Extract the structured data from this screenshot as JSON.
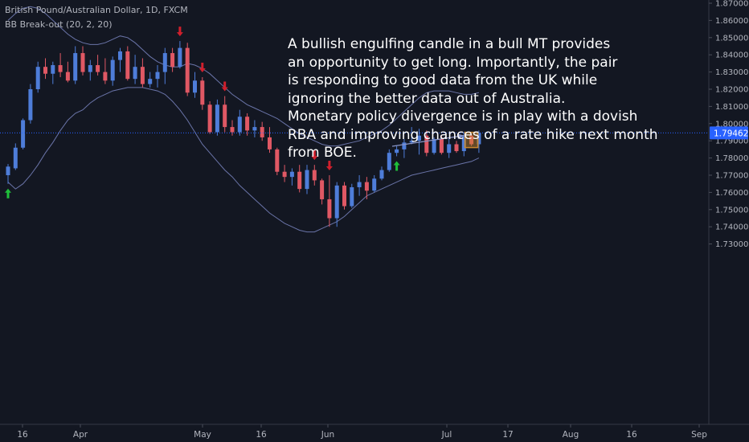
{
  "header": {
    "symbol_line": "British Pound/Australian Dollar, 1D, FXCM",
    "indicator_line": "BB Break-out (20, 2, 20)"
  },
  "annotation": {
    "lines": [
      "A bullish engulfing candle in a bull MT provides",
      "an opportunity to get long. Importantly, the pair",
      "is responding to good data from the UK while",
      "ignoring the better data out of Australia.",
      "Monetary policy divergence is in play with a dovish",
      "RBA and improving chances of a rate hike next month",
      "from BOE."
    ]
  },
  "colors": {
    "background": "#131722",
    "up_candle": "#4e7dd9",
    "down_candle": "#e05864",
    "band_line": "#6a74a8",
    "signal_down": "#d01f2c",
    "signal_up": "#1fbf3a",
    "highlight": "#c8872e",
    "price_tag": "#2962ff",
    "axis_text": "#b2b5be",
    "annotation_text": "#ffffff"
  },
  "chart_data": {
    "type": "candlestick",
    "symbol": "British Pound/Australian Dollar",
    "timeframe": "1D",
    "ylim": [
      1.7245,
      1.8705
    ],
    "y_ticks": [
      "1.87000",
      "1.86000",
      "1.85000",
      "1.84000",
      "1.83000",
      "1.82000",
      "1.81000",
      "1.80000",
      "1.79000",
      "1.78000",
      "1.77000",
      "1.76000",
      "1.75000",
      "1.74000",
      "1.73000"
    ],
    "x_ticks": [
      "16",
      "Apr",
      "16",
      "May",
      "16",
      "Jun",
      "16",
      "Jul",
      "17",
      "Aug",
      "16",
      "Sep"
    ],
    "last_price": "1.79462",
    "candles": [
      {
        "o": 1.77,
        "h": 1.7765,
        "l": 1.765,
        "c": 1.775
      },
      {
        "o": 1.774,
        "h": 1.7885,
        "l": 1.773,
        "c": 1.786
      },
      {
        "o": 1.786,
        "h": 1.803,
        "l": 1.785,
        "c": 1.802
      },
      {
        "o": 1.802,
        "h": 1.823,
        "l": 1.8,
        "c": 1.82
      },
      {
        "o": 1.82,
        "h": 1.836,
        "l": 1.818,
        "c": 1.833
      },
      {
        "o": 1.833,
        "h": 1.838,
        "l": 1.826,
        "c": 1.829
      },
      {
        "o": 1.829,
        "h": 1.836,
        "l": 1.823,
        "c": 1.834
      },
      {
        "o": 1.834,
        "h": 1.841,
        "l": 1.827,
        "c": 1.83
      },
      {
        "o": 1.83,
        "h": 1.836,
        "l": 1.824,
        "c": 1.825
      },
      {
        "o": 1.825,
        "h": 1.845,
        "l": 1.823,
        "c": 1.841
      },
      {
        "o": 1.841,
        "h": 1.845,
        "l": 1.828,
        "c": 1.83
      },
      {
        "o": 1.83,
        "h": 1.837,
        "l": 1.825,
        "c": 1.834
      },
      {
        "o": 1.834,
        "h": 1.84,
        "l": 1.828,
        "c": 1.83
      },
      {
        "o": 1.83,
        "h": 1.838,
        "l": 1.823,
        "c": 1.825
      },
      {
        "o": 1.825,
        "h": 1.839,
        "l": 1.822,
        "c": 1.837
      },
      {
        "o": 1.837,
        "h": 1.844,
        "l": 1.83,
        "c": 1.842
      },
      {
        "o": 1.842,
        "h": 1.845,
        "l": 1.825,
        "c": 1.826
      },
      {
        "o": 1.826,
        "h": 1.84,
        "l": 1.823,
        "c": 1.833
      },
      {
        "o": 1.833,
        "h": 1.838,
        "l": 1.821,
        "c": 1.823
      },
      {
        "o": 1.823,
        "h": 1.83,
        "l": 1.821,
        "c": 1.826
      },
      {
        "o": 1.826,
        "h": 1.834,
        "l": 1.821,
        "c": 1.83
      },
      {
        "o": 1.83,
        "h": 1.844,
        "l": 1.823,
        "c": 1.841
      },
      {
        "o": 1.841,
        "h": 1.844,
        "l": 1.83,
        "c": 1.833
      },
      {
        "o": 1.833,
        "h": 1.848,
        "l": 1.832,
        "c": 1.844
      },
      {
        "o": 1.844,
        "h": 1.847,
        "l": 1.816,
        "c": 1.818
      },
      {
        "o": 1.818,
        "h": 1.83,
        "l": 1.815,
        "c": 1.825
      },
      {
        "o": 1.825,
        "h": 1.827,
        "l": 1.808,
        "c": 1.811
      },
      {
        "o": 1.811,
        "h": 1.813,
        "l": 1.794,
        "c": 1.795
      },
      {
        "o": 1.795,
        "h": 1.814,
        "l": 1.793,
        "c": 1.811
      },
      {
        "o": 1.811,
        "h": 1.816,
        "l": 1.795,
        "c": 1.798
      },
      {
        "o": 1.798,
        "h": 1.802,
        "l": 1.793,
        "c": 1.795
      },
      {
        "o": 1.795,
        "h": 1.808,
        "l": 1.793,
        "c": 1.804
      },
      {
        "o": 1.804,
        "h": 1.806,
        "l": 1.793,
        "c": 1.796
      },
      {
        "o": 1.796,
        "h": 1.802,
        "l": 1.792,
        "c": 1.798
      },
      {
        "o": 1.798,
        "h": 1.801,
        "l": 1.79,
        "c": 1.792
      },
      {
        "o": 1.792,
        "h": 1.798,
        "l": 1.783,
        "c": 1.785
      },
      {
        "o": 1.785,
        "h": 1.786,
        "l": 1.77,
        "c": 1.772
      },
      {
        "o": 1.772,
        "h": 1.776,
        "l": 1.766,
        "c": 1.769
      },
      {
        "o": 1.769,
        "h": 1.774,
        "l": 1.764,
        "c": 1.772
      },
      {
        "o": 1.772,
        "h": 1.776,
        "l": 1.76,
        "c": 1.762
      },
      {
        "o": 1.762,
        "h": 1.776,
        "l": 1.759,
        "c": 1.773
      },
      {
        "o": 1.773,
        "h": 1.776,
        "l": 1.764,
        "c": 1.767
      },
      {
        "o": 1.767,
        "h": 1.768,
        "l": 1.753,
        "c": 1.756
      },
      {
        "o": 1.756,
        "h": 1.77,
        "l": 1.74,
        "c": 1.745
      },
      {
        "o": 1.745,
        "h": 1.766,
        "l": 1.74,
        "c": 1.764
      },
      {
        "o": 1.764,
        "h": 1.766,
        "l": 1.75,
        "c": 1.752
      },
      {
        "o": 1.752,
        "h": 1.765,
        "l": 1.751,
        "c": 1.763
      },
      {
        "o": 1.763,
        "h": 1.77,
        "l": 1.758,
        "c": 1.766
      },
      {
        "o": 1.766,
        "h": 1.769,
        "l": 1.756,
        "c": 1.761
      },
      {
        "o": 1.761,
        "h": 1.77,
        "l": 1.76,
        "c": 1.768
      },
      {
        "o": 1.768,
        "h": 1.775,
        "l": 1.767,
        "c": 1.773
      },
      {
        "o": 1.773,
        "h": 1.785,
        "l": 1.772,
        "c": 1.783
      },
      {
        "o": 1.783,
        "h": 1.787,
        "l": 1.781,
        "c": 1.785
      },
      {
        "o": 1.785,
        "h": 1.791,
        "l": 1.78,
        "c": 1.789
      },
      {
        "o": 1.789,
        "h": 1.798,
        "l": 1.788,
        "c": 1.79
      },
      {
        "o": 1.79,
        "h": 1.797,
        "l": 1.782,
        "c": 1.793
      },
      {
        "o": 1.793,
        "h": 1.796,
        "l": 1.781,
        "c": 1.783
      },
      {
        "o": 1.783,
        "h": 1.792,
        "l": 1.782,
        "c": 1.791
      },
      {
        "o": 1.791,
        "h": 1.793,
        "l": 1.782,
        "c": 1.783
      },
      {
        "o": 1.783,
        "h": 1.791,
        "l": 1.78,
        "c": 1.788
      },
      {
        "o": 1.788,
        "h": 1.79,
        "l": 1.783,
        "c": 1.784
      },
      {
        "o": 1.784,
        "h": 1.795,
        "l": 1.781,
        "c": 1.793
      },
      {
        "o": 1.793,
        "h": 1.794,
        "l": 1.787,
        "c": 1.788
      },
      {
        "o": 1.788,
        "h": 1.796,
        "l": 1.783,
        "c": 1.7946
      }
    ],
    "bollinger_upper": [
      1.86,
      1.864,
      1.867,
      1.868,
      1.867,
      1.864,
      1.86,
      1.856,
      1.852,
      1.849,
      1.847,
      1.846,
      1.846,
      1.847,
      1.849,
      1.851,
      1.85,
      1.847,
      1.843,
      1.839,
      1.836,
      1.834,
      1.833,
      1.833,
      1.835,
      1.834,
      1.832,
      1.829,
      1.825,
      1.821,
      1.817,
      1.814,
      1.811,
      1.809,
      1.807,
      1.805,
      1.803,
      1.8,
      1.797,
      1.794,
      1.792,
      1.79,
      1.788,
      1.787,
      1.787,
      1.788,
      1.789,
      1.79,
      1.792,
      1.794,
      1.796,
      1.799,
      1.803,
      1.807,
      1.811,
      1.815,
      1.818,
      1.819,
      1.819,
      1.819,
      1.818,
      1.817,
      1.817,
      1.818
    ],
    "bollinger_lower": [
      1.766,
      1.762,
      1.765,
      1.77,
      1.776,
      1.783,
      1.789,
      1.796,
      1.802,
      1.806,
      1.808,
      1.812,
      1.815,
      1.817,
      1.819,
      1.82,
      1.821,
      1.821,
      1.821,
      1.82,
      1.819,
      1.817,
      1.813,
      1.808,
      1.802,
      1.795,
      1.788,
      1.783,
      1.778,
      1.773,
      1.769,
      1.764,
      1.76,
      1.756,
      1.752,
      1.748,
      1.745,
      1.742,
      1.74,
      1.738,
      1.737,
      1.737,
      1.739,
      1.741,
      1.743,
      1.746,
      1.75,
      1.754,
      1.758,
      1.76,
      1.762,
      1.764,
      1.766,
      1.768,
      1.77,
      1.771,
      1.772,
      1.773,
      1.774,
      1.775,
      1.776,
      1.777,
      1.778,
      1.78
    ],
    "secondary_lower": [
      1.77,
      1.77,
      1.77,
      1.77,
      1.77,
      1.77,
      1.77,
      1.77,
      1.77,
      1.77,
      1.77,
      1.77,
      1.77,
      1.77,
      1.77,
      1.77,
      1.77,
      1.77,
      1.77,
      1.77,
      1.77,
      1.77,
      1.77,
      1.77,
      1.77,
      1.77,
      1.77,
      1.77,
      1.77,
      1.77,
      1.77,
      1.77,
      1.77,
      1.77,
      1.77,
      1.77,
      1.77,
      1.77,
      1.77,
      1.77,
      1.77,
      1.77,
      1.77,
      1.77,
      1.77,
      1.77,
      1.77,
      1.77,
      1.77,
      1.77,
      1.77,
      1.77,
      1.77,
      1.77,
      1.77,
      1.77,
      1.77,
      1.77,
      1.77,
      1.77,
      1.77,
      1.77,
      1.77,
      1.77
    ],
    "signals": [
      {
        "index": 0,
        "dir": "up"
      },
      {
        "index": 23,
        "dir": "down"
      },
      {
        "index": 26,
        "dir": "down"
      },
      {
        "index": 29,
        "dir": "down"
      },
      {
        "index": 41,
        "dir": "down"
      },
      {
        "index": 43,
        "dir": "down"
      },
      {
        "index": 52,
        "dir": "up"
      }
    ],
    "highlight_candle_index": 62
  }
}
